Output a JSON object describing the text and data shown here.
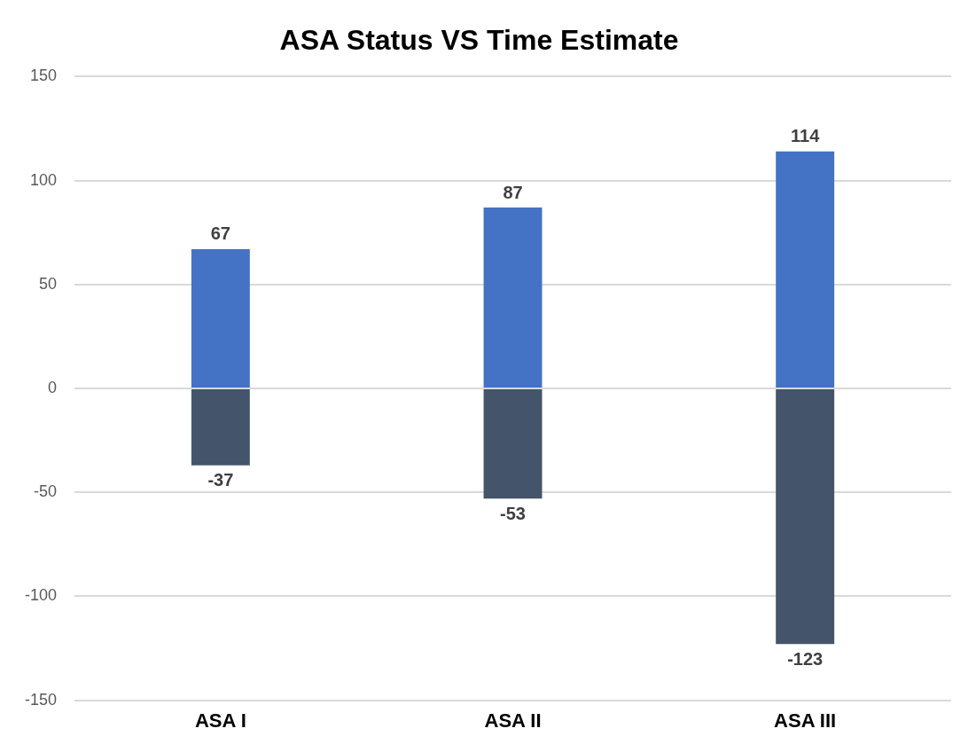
{
  "chart_data": {
    "type": "bar",
    "title": "ASA Status VS Time Estimate",
    "categories": [
      "ASA I",
      "ASA II",
      "ASA III"
    ],
    "stacked": true,
    "series": [
      {
        "color": "#4472c4",
        "values": [
          67,
          87,
          114
        ]
      },
      {
        "color": "#44546a",
        "values": [
          -37,
          -53,
          -123
        ]
      }
    ],
    "ylim": [
      -150,
      150
    ],
    "yticks": [
      -150,
      -100,
      -50,
      0,
      50,
      100,
      150
    ],
    "grid": "y",
    "data_labels": true,
    "legend": false
  }
}
